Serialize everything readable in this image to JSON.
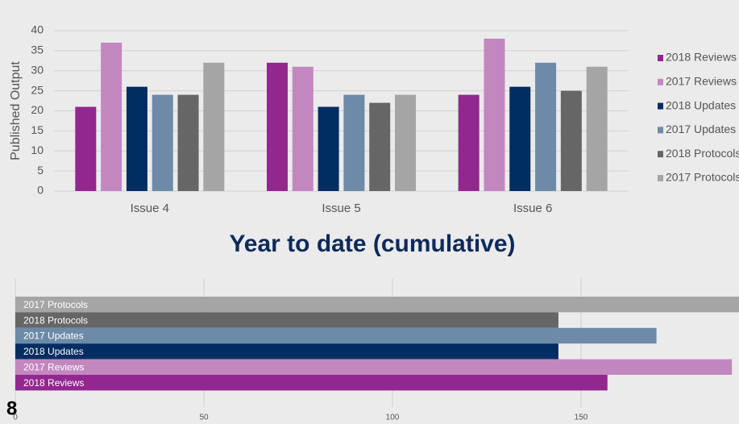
{
  "slide_number": "8",
  "chart_data": [
    {
      "type": "bar",
      "y_label": "Published Output",
      "categories": [
        "Issue 4",
        "Issue 5",
        "Issue 6"
      ],
      "series": [
        {
          "name": "2018 Reviews",
          "color": "#92278f",
          "values": [
            21,
            32,
            24
          ]
        },
        {
          "name": "2017 Reviews",
          "color": "#c387c0",
          "values": [
            37,
            31,
            38
          ]
        },
        {
          "name": "2018 Updates",
          "color": "#002d62",
          "values": [
            26,
            21,
            26
          ]
        },
        {
          "name": "2017 Updates",
          "color": "#6d8aa8",
          "values": [
            24,
            24,
            32
          ]
        },
        {
          "name": "2018 Protocols",
          "color": "#666666",
          "values": [
            24,
            22,
            25
          ]
        },
        {
          "name": "2017 Protocols",
          "color": "#a5a5a5",
          "values": [
            32,
            24,
            31
          ]
        }
      ],
      "ylim": [
        0,
        40
      ],
      "yticks": [
        0,
        5,
        10,
        15,
        20,
        25,
        30,
        35,
        40
      ],
      "grid": true,
      "legend": "right"
    },
    {
      "type": "barh",
      "title": "Year to date (cumulative)",
      "categories": [
        "2017 Protocols",
        "2018 Protocols",
        "2017 Updates",
        "2018 Updates",
        "2017 Reviews",
        "2018 Reviews"
      ],
      "values": [
        195,
        144,
        170,
        144,
        190,
        157
      ],
      "colors": [
        "#a5a5a5",
        "#666666",
        "#6d8aa8",
        "#002d62",
        "#c387c0",
        "#92278f"
      ],
      "xlim": [
        0,
        200
      ],
      "xticks": [
        0,
        50,
        100,
        150
      ],
      "grid": true
    }
  ]
}
